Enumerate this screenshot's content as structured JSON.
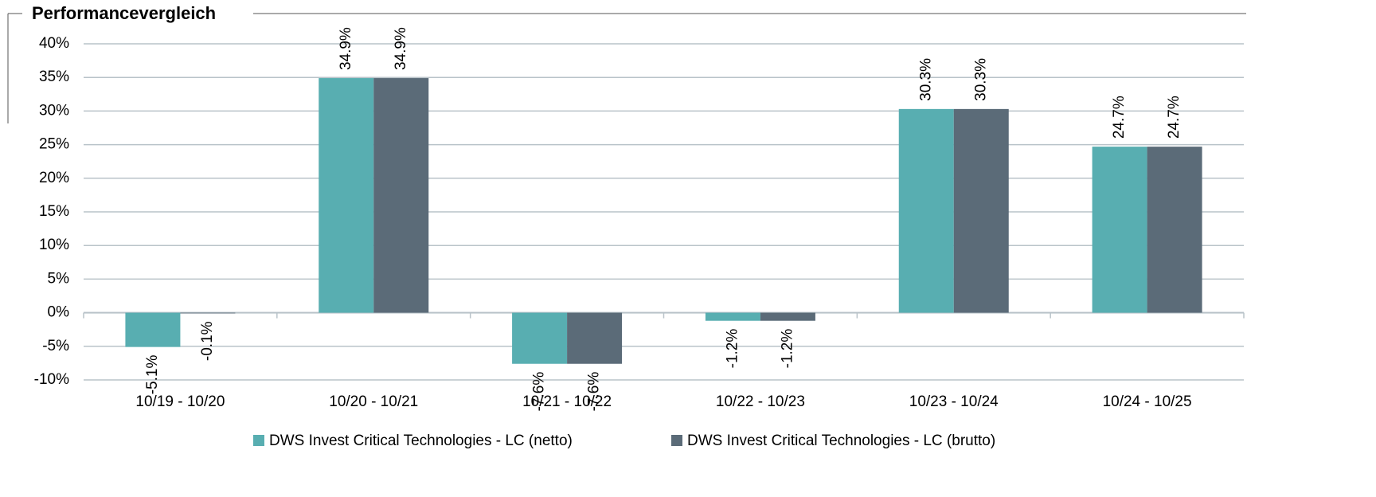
{
  "chart_data": {
    "type": "bar",
    "title": "Performancevergleich",
    "categories": [
      "10/19 - 10/20",
      "10/20 - 10/21",
      "10/21 - 10/22",
      "10/22 - 10/23",
      "10/23 - 10/24",
      "10/24 - 10/25"
    ],
    "series": [
      {
        "name": "DWS Invest Critical Technologies - LC (netto)",
        "color": "#58aeb1",
        "values": [
          -5.1,
          34.9,
          -7.6,
          -1.2,
          30.3,
          24.7
        ],
        "value_labels": [
          "-5.1%",
          "34.9%",
          "-7.6%",
          "-1.2%",
          "30.3%",
          "24.7%"
        ]
      },
      {
        "name": "DWS Invest Critical Technologies - LC (brutto)",
        "color": "#5b6b78",
        "values": [
          -0.1,
          34.9,
          -7.6,
          -1.2,
          30.3,
          24.7
        ],
        "value_labels": [
          "-0.1%",
          "34.9%",
          "-7.6%",
          "-1.2%",
          "30.3%",
          "24.7%"
        ]
      }
    ],
    "ylim": [
      -10,
      40
    ],
    "yticks": [
      {
        "value": -10,
        "label": "-10%"
      },
      {
        "value": -5,
        "label": "-5%"
      },
      {
        "value": 0,
        "label": "0%"
      },
      {
        "value": 5,
        "label": "5%"
      },
      {
        "value": 10,
        "label": "10%"
      },
      {
        "value": 15,
        "label": "15%"
      },
      {
        "value": 20,
        "label": "20%"
      },
      {
        "value": 25,
        "label": "25%"
      },
      {
        "value": 30,
        "label": "30%"
      },
      {
        "value": 35,
        "label": "35%"
      },
      {
        "value": 40,
        "label": "40%"
      }
    ],
    "grid": true
  }
}
